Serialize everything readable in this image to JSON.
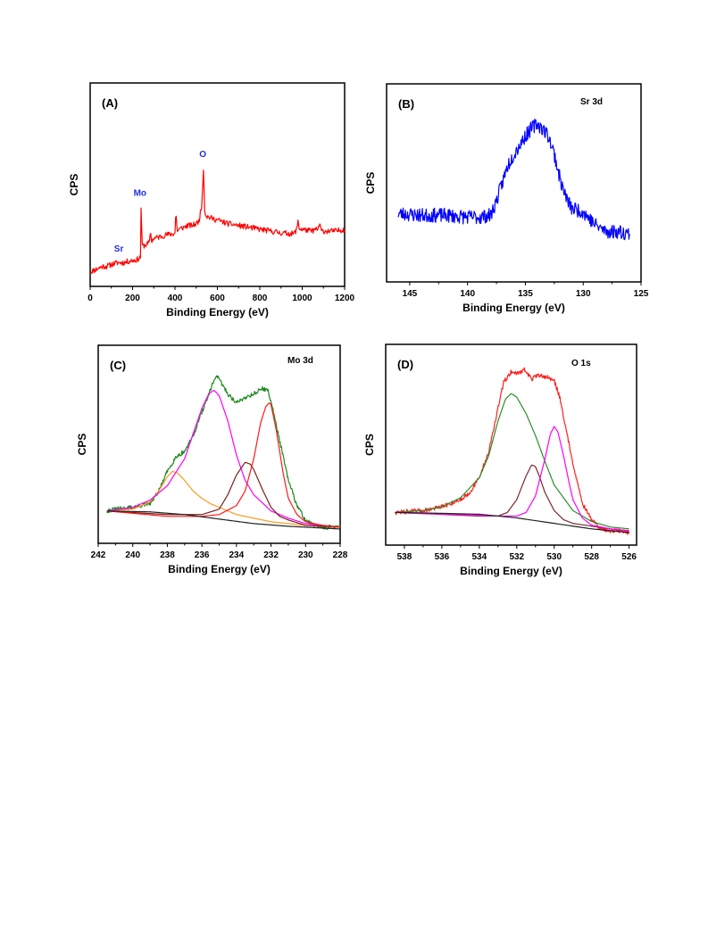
{
  "chart_data": [
    {
      "id": "A",
      "type": "line",
      "panel_label": "(A)",
      "inset_label": "",
      "xlabel": "Binding Energy (eV)",
      "ylabel": "CPS",
      "xlim": [
        0,
        1200
      ],
      "ylim": [
        0,
        100
      ],
      "x_reversed": false,
      "xticks": [
        0,
        200,
        400,
        600,
        800,
        1000,
        1200
      ],
      "xtick_labels": [
        "0",
        "200",
        "400",
        "600",
        "800",
        "1000",
        "1200"
      ],
      "grid": false,
      "legend": "none",
      "annotations": [
        {
          "text": "Sr",
          "x": 135,
          "y": 14
        },
        {
          "text": "Mo",
          "x": 235,
          "y": 44
        },
        {
          "text": "O",
          "x": 531,
          "y": 65
        }
      ],
      "series": [
        {
          "color": "#ff0000",
          "noise": 1.5,
          "seed": 11,
          "x": [
            0,
            20,
            40,
            60,
            80,
            100,
            130,
            160,
            190,
            220,
            238,
            240,
            242,
            246,
            250,
            270,
            280,
            284,
            288,
            292,
            300,
            330,
            360,
            390,
            400,
            404,
            408,
            412,
            420,
            440,
            460,
            480,
            500,
            510,
            514,
            518,
            525,
            530,
            534,
            537,
            540,
            544,
            550,
            570,
            600,
            650,
            700,
            750,
            800,
            850,
            900,
            960,
            975,
            980,
            985,
            990,
            1000,
            1040,
            1075,
            1082,
            1090,
            1120,
            1160,
            1200
          ],
          "y": [
            3,
            4,
            5,
            6,
            6,
            7,
            8,
            8,
            9,
            9.5,
            11,
            38,
            28,
            17,
            17,
            18,
            19,
            26,
            20,
            20,
            21,
            22,
            23,
            23.5,
            24,
            36,
            28,
            25,
            26,
            27,
            28,
            28,
            29,
            30,
            31,
            34,
            37,
            48,
            60,
            48,
            37,
            34,
            33,
            32,
            31,
            29,
            28,
            27,
            26,
            25,
            24,
            23.5,
            26,
            31,
            27,
            26,
            26,
            25,
            26,
            29,
            25,
            25,
            25,
            26
          ]
        }
      ]
    },
    {
      "id": "B",
      "type": "line",
      "panel_label": "(B)",
      "inset_label": "Sr 3d",
      "xlabel": "Binding Energy (eV)",
      "ylabel": "CPS",
      "xlim": [
        147,
        125
      ],
      "ylim": [
        0,
        100
      ],
      "x_reversed": true,
      "xticks": [
        145,
        140,
        135,
        130,
        125
      ],
      "xtick_labels": [
        "145",
        "140",
        "135",
        "130",
        "125"
      ],
      "grid": false,
      "legend": "none",
      "annotations": [],
      "series": [
        {
          "color": "#0000ff",
          "noise": 4,
          "seed": 23,
          "x": [
            146,
            144,
            142,
            140,
            139,
            138,
            137.5,
            137,
            136.5,
            136,
            135,
            134.5,
            134,
            133.5,
            133,
            132.5,
            132,
            131.5,
            131,
            130,
            129,
            128,
            127,
            126
          ],
          "y": [
            33,
            32,
            32,
            31,
            31,
            32,
            40,
            50,
            60,
            66,
            76,
            80,
            83,
            80,
            76,
            66,
            52,
            42,
            36,
            34,
            27,
            23,
            23,
            22
          ]
        }
      ]
    },
    {
      "id": "C",
      "type": "line",
      "panel_label": "(C)",
      "inset_label": "Mo 3d",
      "xlabel": "Binding Energy (eV)",
      "ylabel": "CPS",
      "xlim": [
        242,
        228
      ],
      "ylim": [
        0,
        100
      ],
      "x_reversed": true,
      "xticks": [
        242,
        240,
        238,
        236,
        234,
        232,
        230,
        228
      ],
      "xtick_labels": [
        "242",
        "240",
        "238",
        "236",
        "234",
        "232",
        "230",
        "228"
      ],
      "grid": false,
      "legend": "none",
      "annotations": [],
      "series": [
        {
          "color": "#1d8a1d",
          "noise": 1.2,
          "seed": 31,
          "x": [
            241.5,
            241,
            240,
            239,
            238.5,
            238,
            237.5,
            237,
            236.5,
            236,
            235.5,
            235.2,
            235,
            234.5,
            234,
            233.5,
            233,
            232.5,
            232.2,
            232,
            231.5,
            231,
            230.5,
            230,
            229.5,
            229,
            228.5,
            228
          ],
          "y": [
            13,
            14,
            15,
            17,
            24,
            35,
            43,
            46,
            55,
            68,
            80,
            88,
            86,
            78,
            73,
            76,
            78,
            81,
            80,
            74,
            52,
            30,
            16,
            8,
            5,
            4,
            4,
            4
          ]
        },
        {
          "color": "#ff9a1f",
          "noise": 0,
          "seed": 0,
          "x": [
            241.5,
            240,
            239,
            238.5,
            238,
            237.7,
            237.4,
            237,
            236.5,
            236,
            235.5,
            235,
            234,
            233,
            232,
            230,
            228
          ],
          "y": [
            13,
            14,
            18,
            24,
            32,
            35,
            34,
            30,
            24,
            20,
            17,
            15,
            11,
            9,
            7,
            5,
            4
          ]
        },
        {
          "color": "#ff00ff",
          "noise": 0,
          "seed": 0,
          "x": [
            241.5,
            240,
            239,
            238,
            237,
            236.5,
            236,
            235.6,
            235.3,
            235,
            234.5,
            234,
            233.5,
            233,
            232,
            231,
            230,
            229,
            228
          ],
          "y": [
            13,
            15,
            19,
            27,
            42,
            56,
            70,
            78,
            80,
            77,
            63,
            44,
            30,
            22,
            13,
            9,
            6,
            5,
            4
          ]
        },
        {
          "color": "#7b1f1f",
          "noise": 0,
          "seed": 0,
          "x": [
            241.5,
            238,
            236,
            235,
            234.5,
            234,
            233.5,
            233.2,
            233,
            232.5,
            232,
            231.5,
            231,
            230,
            228
          ],
          "y": [
            13,
            11,
            11,
            14,
            22,
            33,
            40,
            39,
            36,
            25,
            15,
            10,
            8,
            5,
            4
          ]
        },
        {
          "color": "#ff1a1a",
          "noise": 0,
          "seed": 0,
          "x": [
            241.5,
            238,
            236,
            235,
            234,
            233.5,
            233,
            232.6,
            232.3,
            232.1,
            232,
            231.7,
            231.3,
            231,
            230.5,
            230,
            229,
            228
          ],
          "y": [
            13,
            10,
            10,
            11,
            16,
            24,
            42,
            62,
            71,
            73,
            72,
            58,
            34,
            20,
            11,
            7,
            5,
            4
          ]
        },
        {
          "color": "#222222",
          "noise": 0,
          "seed": 0,
          "x": [
            241.5,
            239,
            237,
            235,
            233,
            231,
            229,
            228
          ],
          "y": [
            13,
            12.5,
            11,
            8.5,
            6,
            4.5,
            3.5,
            3
          ]
        }
      ]
    },
    {
      "id": "D",
      "type": "line",
      "panel_label": "(D)",
      "inset_label": "O 1s",
      "xlabel": "Binding Energy (eV)",
      "ylabel": "CPS",
      "xlim": [
        539,
        525.6
      ],
      "ylim": [
        0,
        100
      ],
      "x_reversed": true,
      "xticks": [
        538,
        536,
        534,
        532,
        530,
        528,
        526
      ],
      "xtick_labels": [
        "538",
        "536",
        "534",
        "532",
        "530",
        "528",
        "526"
      ],
      "grid": false,
      "legend": "none",
      "annotations": [],
      "series": [
        {
          "color": "#ff2020",
          "noise": 1.2,
          "seed": 47,
          "x": [
            538.5,
            537,
            536,
            535,
            534.5,
            534,
            533.5,
            533,
            532.7,
            532.3,
            532,
            531.6,
            531.2,
            530.8,
            530.4,
            530,
            529.7,
            529.4,
            529,
            528.5,
            528,
            527.5,
            527,
            526.5,
            526
          ],
          "y": [
            13,
            14,
            16,
            20,
            24,
            32,
            46,
            70,
            84,
            90,
            89,
            91,
            86,
            88,
            87,
            85,
            76,
            60,
            40,
            18,
            9,
            4,
            3,
            3,
            2
          ]
        },
        {
          "color": "#2a8f2a",
          "noise": 0,
          "seed": 0,
          "x": [
            538.5,
            537,
            536,
            535,
            534,
            533.5,
            533,
            532.6,
            532.3,
            532,
            531.5,
            531,
            530.5,
            530,
            529,
            528,
            527,
            526
          ],
          "y": [
            13,
            14,
            16,
            21,
            32,
            44,
            63,
            75,
            78,
            76,
            67,
            55,
            41,
            28,
            14,
            8,
            5,
            4
          ]
        },
        {
          "color": "#7b2a2a",
          "noise": 0,
          "seed": 0,
          "x": [
            538.5,
            534,
            533,
            532.5,
            532,
            531.5,
            531.2,
            531,
            530.8,
            530.5,
            530,
            529.5,
            529,
            527,
            526
          ],
          "y": [
            13,
            11,
            11,
            13,
            20,
            33,
            39,
            38,
            33,
            24,
            14,
            9,
            7,
            4,
            3
          ]
        },
        {
          "color": "#ff00ff",
          "noise": 0,
          "seed": 0,
          "x": [
            538.5,
            533,
            532,
            531.5,
            531,
            530.5,
            530.2,
            530,
            529.8,
            529.5,
            529.2,
            529,
            528.5,
            528,
            527,
            526
          ],
          "y": [
            13,
            11,
            11,
            13,
            22,
            42,
            56,
            60,
            57,
            44,
            29,
            20,
            10,
            6,
            4,
            3
          ]
        },
        {
          "color": "#222222",
          "noise": 0,
          "seed": 0,
          "x": [
            538.5,
            536,
            534,
            532,
            530,
            528,
            526
          ],
          "y": [
            13,
            12.5,
            12,
            10,
            7,
            4,
            2
          ]
        }
      ]
    }
  ]
}
